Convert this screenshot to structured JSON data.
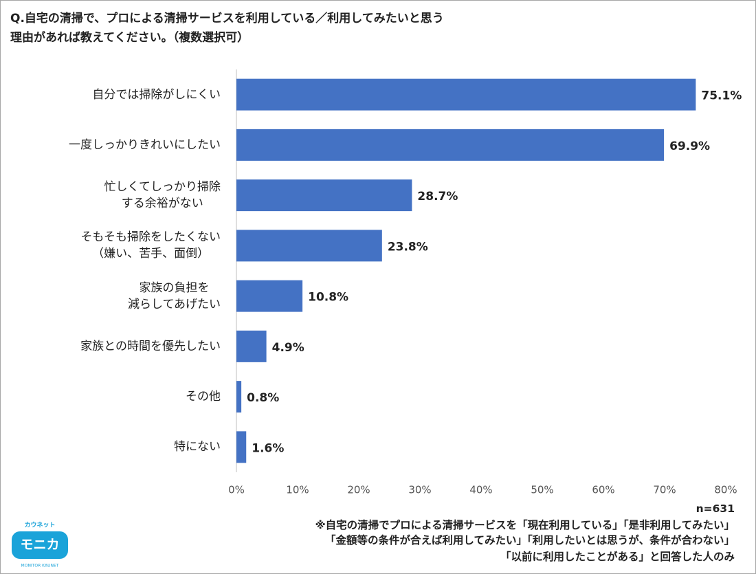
{
  "chart_data": {
    "type": "barh",
    "title": "Q.自宅の清掃で、プロによる清掃サービスを利用している／利用してみたいと思う\n理由があれば教えてください。（複数選択可）",
    "categories": [
      "自分では掃除がしにくい",
      "一度しっかりきれいにしたい",
      "忙しくてしっかり掃除\nする余裕がない",
      "そもそも掃除をしたくない\n（嫌い、苦手、面倒）",
      "家族の負担を\n減らしてあげたい",
      "家族との時間を優先したい",
      "その他",
      "特にない"
    ],
    "values": [
      75.1,
      69.9,
      28.7,
      23.8,
      10.8,
      4.9,
      0.8,
      1.6
    ],
    "value_labels": [
      "75.1%",
      "69.9%",
      "28.7%",
      "23.8%",
      "10.8%",
      "4.9%",
      "0.8%",
      "1.6%"
    ],
    "color": "#4472c4",
    "xlim": [
      0,
      80
    ],
    "xticks": [
      {
        "value": 0,
        "label": "0%"
      },
      {
        "value": 10,
        "label": "10%"
      },
      {
        "value": 20,
        "label": "20%"
      },
      {
        "value": 30,
        "label": "30%"
      },
      {
        "value": 40,
        "label": "40%"
      },
      {
        "value": 50,
        "label": "50%"
      },
      {
        "value": 60,
        "label": "60%"
      },
      {
        "value": 70,
        "label": "70%"
      },
      {
        "value": 80,
        "label": "80%"
      }
    ],
    "grid": false,
    "annotations": [
      "n=631",
      "※自宅の清掃でプロによる清掃サービスを「現在利用している」「是非利用してみたい」",
      "「金額等の条件が合えば利用してみたい」「利用したいとは思うが、条件が合わない」",
      "「以前に利用したことがある」と回答した人のみ"
    ]
  },
  "logo": {
    "kana": "カウネット",
    "name": "モニカ",
    "sub": "MONITOR KAUNET"
  }
}
